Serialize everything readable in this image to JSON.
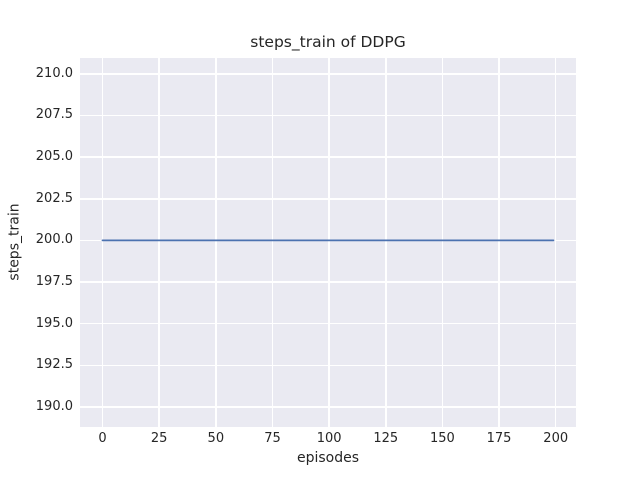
{
  "colors": {
    "figure_background": "#ffffff",
    "axes_background": "#eaeaf2",
    "gridline": "#ffffff",
    "line": "#4c72b0",
    "text": "#262626"
  },
  "chart_data": {
    "type": "line",
    "title": "steps_train of DDPG",
    "xlabel": "episodes",
    "ylabel": "steps_train",
    "x_ticks": [
      0,
      25,
      50,
      75,
      100,
      125,
      150,
      175,
      200
    ],
    "x_tick_labels": [
      "0",
      "25",
      "50",
      "75",
      "100",
      "125",
      "150",
      "175",
      "200"
    ],
    "y_ticks": [
      190.0,
      192.5,
      195.0,
      197.5,
      200.0,
      202.5,
      205.0,
      207.5,
      210.0
    ],
    "y_tick_labels": [
      "190.0",
      "192.5",
      "195.0",
      "197.5",
      "200.0",
      "202.5",
      "205.0",
      "207.5",
      "210.0"
    ],
    "xlim": [
      -9.95,
      208.95
    ],
    "ylim": [
      188.8,
      210.95
    ],
    "grid": true,
    "legend": false,
    "series": [
      {
        "name": "steps_train",
        "color": "#4c72b0",
        "line_width": 1.8,
        "x": [
          0,
          199
        ],
        "y": [
          200,
          200
        ],
        "note": "constant value 200 across all episodes 0-199"
      }
    ]
  }
}
